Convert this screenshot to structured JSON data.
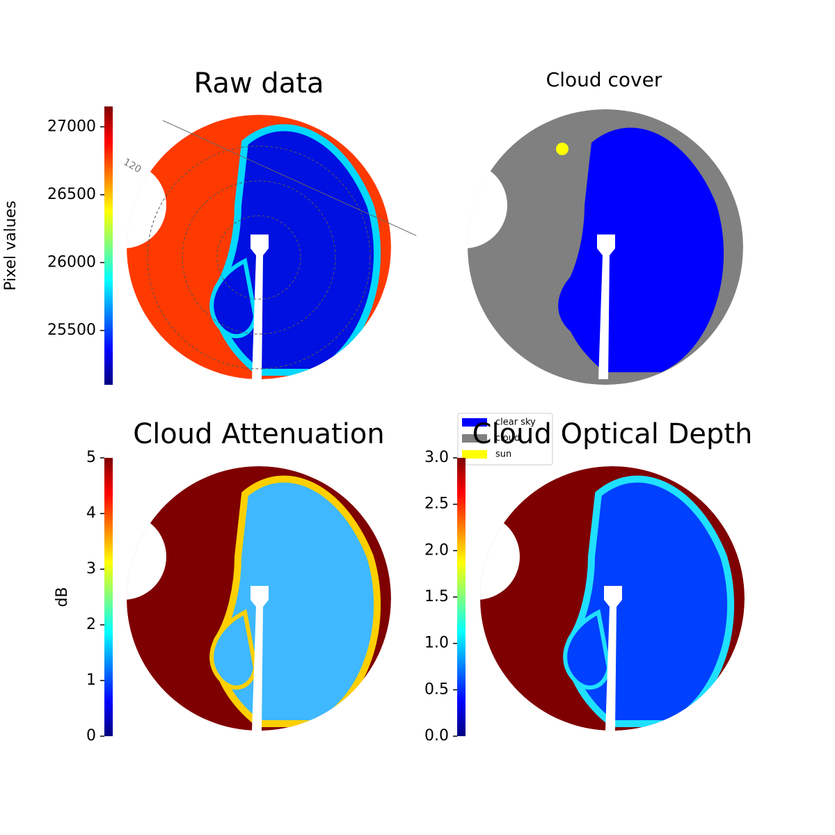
{
  "chart_data": [
    {
      "type": "image",
      "title": "Raw data",
      "colormap": "jet",
      "colorbar": {
        "label": "Pixel values",
        "ylim": [
          25100,
          27150
        ],
        "yticks": [
          25500,
          26000,
          26500,
          27000
        ]
      },
      "annotations": [
        "120"
      ]
    },
    {
      "type": "image",
      "title": "Cloud cover",
      "series": [
        {
          "name": "clear sky",
          "color": "#0000ff"
        },
        {
          "name": "cloud",
          "color": "#808080"
        },
        {
          "name": "sun",
          "color": "#ffff00"
        }
      ]
    },
    {
      "type": "image",
      "title": "Cloud Attenuation",
      "colormap": "jet",
      "colorbar": {
        "label": "dB",
        "ylim": [
          0,
          5
        ],
        "yticks": [
          0,
          1,
          2,
          3,
          4,
          5
        ]
      }
    },
    {
      "type": "image",
      "title": "Cloud Optical Depth",
      "colormap": "jet",
      "colorbar": {
        "ylim": [
          0,
          3
        ],
        "yticks": [
          {
            "value": 0,
            "label": "0.0"
          },
          0.5,
          {
            "value": 1,
            "label": "1.0"
          },
          1.5,
          {
            "value": 2,
            "label": "2.0"
          },
          2.5,
          {
            "value": 3,
            "label": "3.0"
          }
        ]
      }
    }
  ]
}
